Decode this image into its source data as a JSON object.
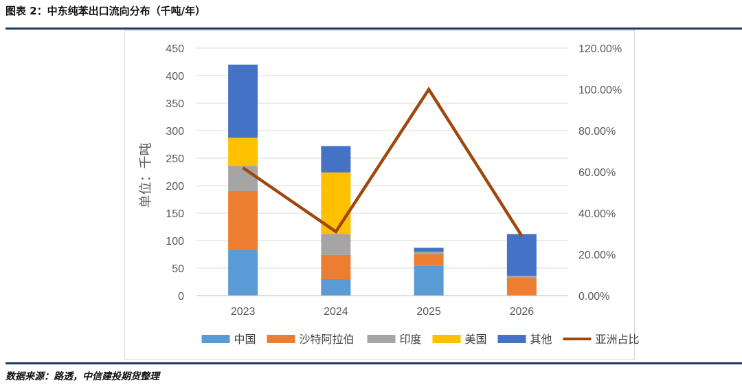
{
  "figure_title": "图表 2：中东纯苯出口流向分布（千吨/年）",
  "source_note": "数据来源：路透，中信建投期货整理",
  "colors": {
    "中国": "#5b9bd5",
    "沙特阿拉伯": "#ed7d31",
    "印度": "#a5a5a5",
    "美国": "#ffc000",
    "其他": "#4472c4",
    "亚洲占比": "#9e480e",
    "grid": "#d9d9d9",
    "rule": "#1f3864"
  },
  "chart_data": {
    "type": "bar",
    "stacked": true,
    "title": "",
    "categories": [
      "2023",
      "2024",
      "2025",
      "2026"
    ],
    "series": [
      {
        "name": "中国",
        "values": [
          84,
          30,
          54,
          0
        ]
      },
      {
        "name": "沙特阿拉伯",
        "values": [
          106,
          44,
          21,
          32
        ]
      },
      {
        "name": "印度",
        "values": [
          46,
          38,
          5,
          4
        ]
      },
      {
        "name": "美国",
        "values": [
          51,
          112,
          0,
          0
        ]
      },
      {
        "name": "其他",
        "values": [
          133,
          48,
          7,
          76
        ]
      }
    ],
    "line_series": {
      "name": "亚洲占比",
      "axis": "right",
      "values": [
        62.0,
        31.0,
        100.0,
        29.0
      ]
    },
    "ylabel": "单位：千吨",
    "ylim": [
      0,
      450
    ],
    "yticks": [
      "0",
      "50",
      "100",
      "150",
      "200",
      "250",
      "300",
      "350",
      "400",
      "450"
    ],
    "y2lim": [
      0,
      120
    ],
    "y2ticks": [
      "0.00%",
      "20.00%",
      "40.00%",
      "60.00%",
      "80.00%",
      "100.00%",
      "120.00%"
    ],
    "legend_position": "bottom",
    "grid": true
  }
}
